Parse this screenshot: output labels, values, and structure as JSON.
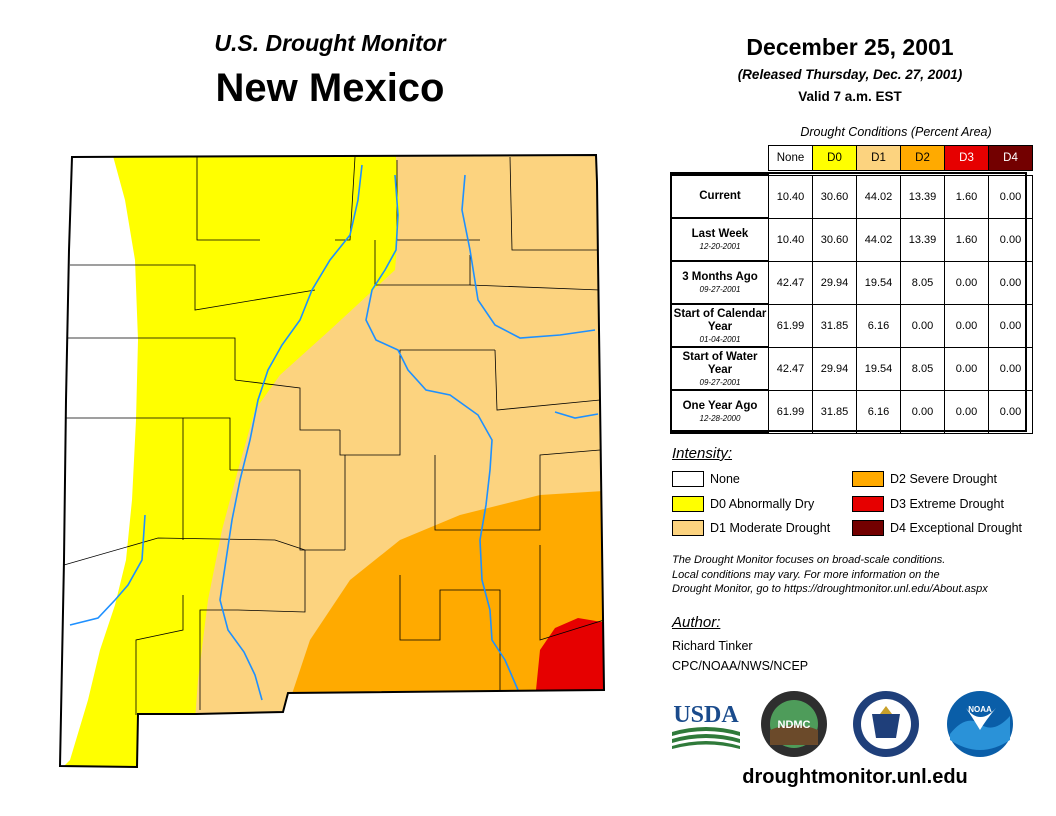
{
  "header": {
    "subtitle": "U.S. Drought Monitor",
    "state": "New Mexico",
    "date": "December 25, 2001",
    "released": "(Released Thursday, Dec. 27, 2001)",
    "valid": "Valid 7 a.m. EST"
  },
  "table": {
    "caption": "Drought Conditions (Percent Area)",
    "columns": [
      "None",
      "D0",
      "D1",
      "D2",
      "D3",
      "D4"
    ],
    "rows": [
      {
        "label": "Current",
        "date": "",
        "values": [
          "10.40",
          "30.60",
          "44.02",
          "13.39",
          "1.60",
          "0.00"
        ]
      },
      {
        "label": "Last Week",
        "date": "12-20-2001",
        "values": [
          "10.40",
          "30.60",
          "44.02",
          "13.39",
          "1.60",
          "0.00"
        ]
      },
      {
        "label": "3 Months Ago",
        "date": "09-27-2001",
        "values": [
          "42.47",
          "29.94",
          "19.54",
          "8.05",
          "0.00",
          "0.00"
        ]
      },
      {
        "label": "Start of Calendar Year",
        "date": "01-04-2001",
        "values": [
          "61.99",
          "31.85",
          "6.16",
          "0.00",
          "0.00",
          "0.00"
        ]
      },
      {
        "label": "Start of Water Year",
        "date": "09-27-2001",
        "values": [
          "42.47",
          "29.94",
          "19.54",
          "8.05",
          "0.00",
          "0.00"
        ]
      },
      {
        "label": "One Year Ago",
        "date": "12-28-2000",
        "values": [
          "61.99",
          "31.85",
          "6.16",
          "0.00",
          "0.00",
          "0.00"
        ]
      }
    ]
  },
  "legend": {
    "title": "Intensity:",
    "items": [
      {
        "label": "None",
        "color": "#ffffff"
      },
      {
        "label": "D0 Abnormally Dry",
        "color": "#ffff00"
      },
      {
        "label": "D1 Moderate Drought",
        "color": "#fcd37f"
      },
      {
        "label": "D2 Severe Drought",
        "color": "#ffaa00"
      },
      {
        "label": "D3 Extreme Drought",
        "color": "#e60000"
      },
      {
        "label": "D4 Exceptional Drought",
        "color": "#730000"
      }
    ]
  },
  "note": {
    "line1": "The Drought Monitor focuses on broad-scale conditions.",
    "line2": "Local conditions may vary. For more information on the",
    "line3": "Drought Monitor, go to https://droughtmonitor.unl.edu/About.aspx"
  },
  "author": {
    "title": "Author:",
    "name": "Richard Tinker",
    "org": "CPC/NOAA/NWS/NCEP"
  },
  "logos": {
    "usda": "USDA",
    "ndmc": "NDMC",
    "noaa": "NOAA"
  },
  "footer": {
    "url": "droughtmonitor.unl.edu"
  },
  "colors": {
    "none": "#ffffff",
    "d0": "#ffff00",
    "d1": "#fcd37f",
    "d2": "#ffaa00",
    "d3": "#e60000",
    "d4": "#730000",
    "river": "#1e90ff",
    "border": "#000000"
  }
}
